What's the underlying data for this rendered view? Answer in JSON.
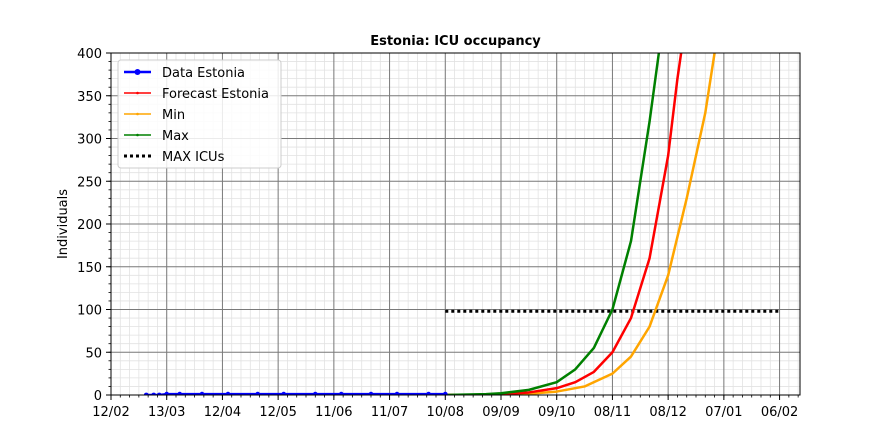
{
  "chart_data": {
    "type": "line",
    "title": "Estonia: ICU occupancy",
    "xlabel": "",
    "ylabel": "Individuals",
    "x_unit": "date",
    "xlim": [
      "2020-02-12",
      "2021-02-17"
    ],
    "ylim": [
      0,
      400
    ],
    "x_ticks": [
      "2020-02-12",
      "2020-03-13",
      "2020-04-12",
      "2020-05-12",
      "2020-06-11",
      "2020-07-11",
      "2020-08-10",
      "2020-09-09",
      "2020-10-09",
      "2020-11-08",
      "2020-12-08",
      "2021-01-07",
      "2021-02-06"
    ],
    "x_tick_labels": [
      "12/02",
      "13/03",
      "12/04",
      "12/05",
      "11/06",
      "11/07",
      "10/08",
      "09/09",
      "09/10",
      "08/11",
      "08/12",
      "07/01",
      "06/02"
    ],
    "y_ticks": [
      0,
      50,
      100,
      150,
      200,
      250,
      300,
      350,
      400
    ],
    "y_tick_labels": [
      "0",
      "50",
      "100",
      "150",
      "200",
      "250",
      "300",
      "350",
      "400"
    ],
    "grid": true,
    "legend_position": "upper-left",
    "series": [
      {
        "name": "Data Estonia",
        "color": "#0000ff",
        "style": "solid-markers",
        "points": [
          [
            "2020-03-02",
            0
          ],
          [
            "2020-03-06",
            0
          ],
          [
            "2020-03-09",
            0
          ],
          [
            "2020-03-13",
            1
          ],
          [
            "2020-03-20",
            1
          ],
          [
            "2020-04-01",
            1
          ],
          [
            "2020-04-15",
            1
          ],
          [
            "2020-05-01",
            1
          ],
          [
            "2020-05-15",
            1
          ],
          [
            "2020-06-01",
            1
          ],
          [
            "2020-06-15",
            1
          ],
          [
            "2020-07-01",
            1
          ],
          [
            "2020-07-15",
            1
          ],
          [
            "2020-08-01",
            1
          ],
          [
            "2020-08-10",
            1
          ]
        ]
      },
      {
        "name": "Forecast Estonia",
        "color": "#ff0000",
        "style": "solid",
        "points": [
          [
            "2020-08-10",
            0
          ],
          [
            "2020-09-01",
            0.5
          ],
          [
            "2020-09-09",
            1
          ],
          [
            "2020-09-24",
            3
          ],
          [
            "2020-10-09",
            8
          ],
          [
            "2020-10-19",
            15
          ],
          [
            "2020-10-29",
            27
          ],
          [
            "2020-11-08",
            50
          ],
          [
            "2020-11-18",
            90
          ],
          [
            "2020-11-28",
            160
          ],
          [
            "2020-12-08",
            280
          ],
          [
            "2020-12-13",
            370
          ],
          [
            "2020-12-15",
            400
          ]
        ]
      },
      {
        "name": "Min",
        "color": "#ffa500",
        "style": "solid",
        "points": [
          [
            "2020-08-10",
            0
          ],
          [
            "2020-09-09",
            0.5
          ],
          [
            "2020-09-24",
            1.5
          ],
          [
            "2020-10-09",
            4
          ],
          [
            "2020-10-24",
            10
          ],
          [
            "2020-11-08",
            25
          ],
          [
            "2020-11-18",
            45
          ],
          [
            "2020-11-28",
            80
          ],
          [
            "2020-12-08",
            140
          ],
          [
            "2020-12-18",
            230
          ],
          [
            "2020-12-28",
            330
          ],
          [
            "2021-01-02",
            400
          ]
        ]
      },
      {
        "name": "Max",
        "color": "#008000",
        "style": "solid",
        "points": [
          [
            "2020-08-10",
            0
          ],
          [
            "2020-09-01",
            1
          ],
          [
            "2020-09-09",
            2
          ],
          [
            "2020-09-24",
            6
          ],
          [
            "2020-10-09",
            15
          ],
          [
            "2020-10-19",
            30
          ],
          [
            "2020-10-29",
            55
          ],
          [
            "2020-11-08",
            100
          ],
          [
            "2020-11-18",
            180
          ],
          [
            "2020-11-28",
            320
          ],
          [
            "2020-12-03",
            400
          ]
        ]
      },
      {
        "name": "MAX ICUs",
        "color": "#000000",
        "style": "dotted",
        "points": [
          [
            "2020-08-10",
            98
          ],
          [
            "2021-02-06",
            98
          ]
        ]
      }
    ]
  }
}
